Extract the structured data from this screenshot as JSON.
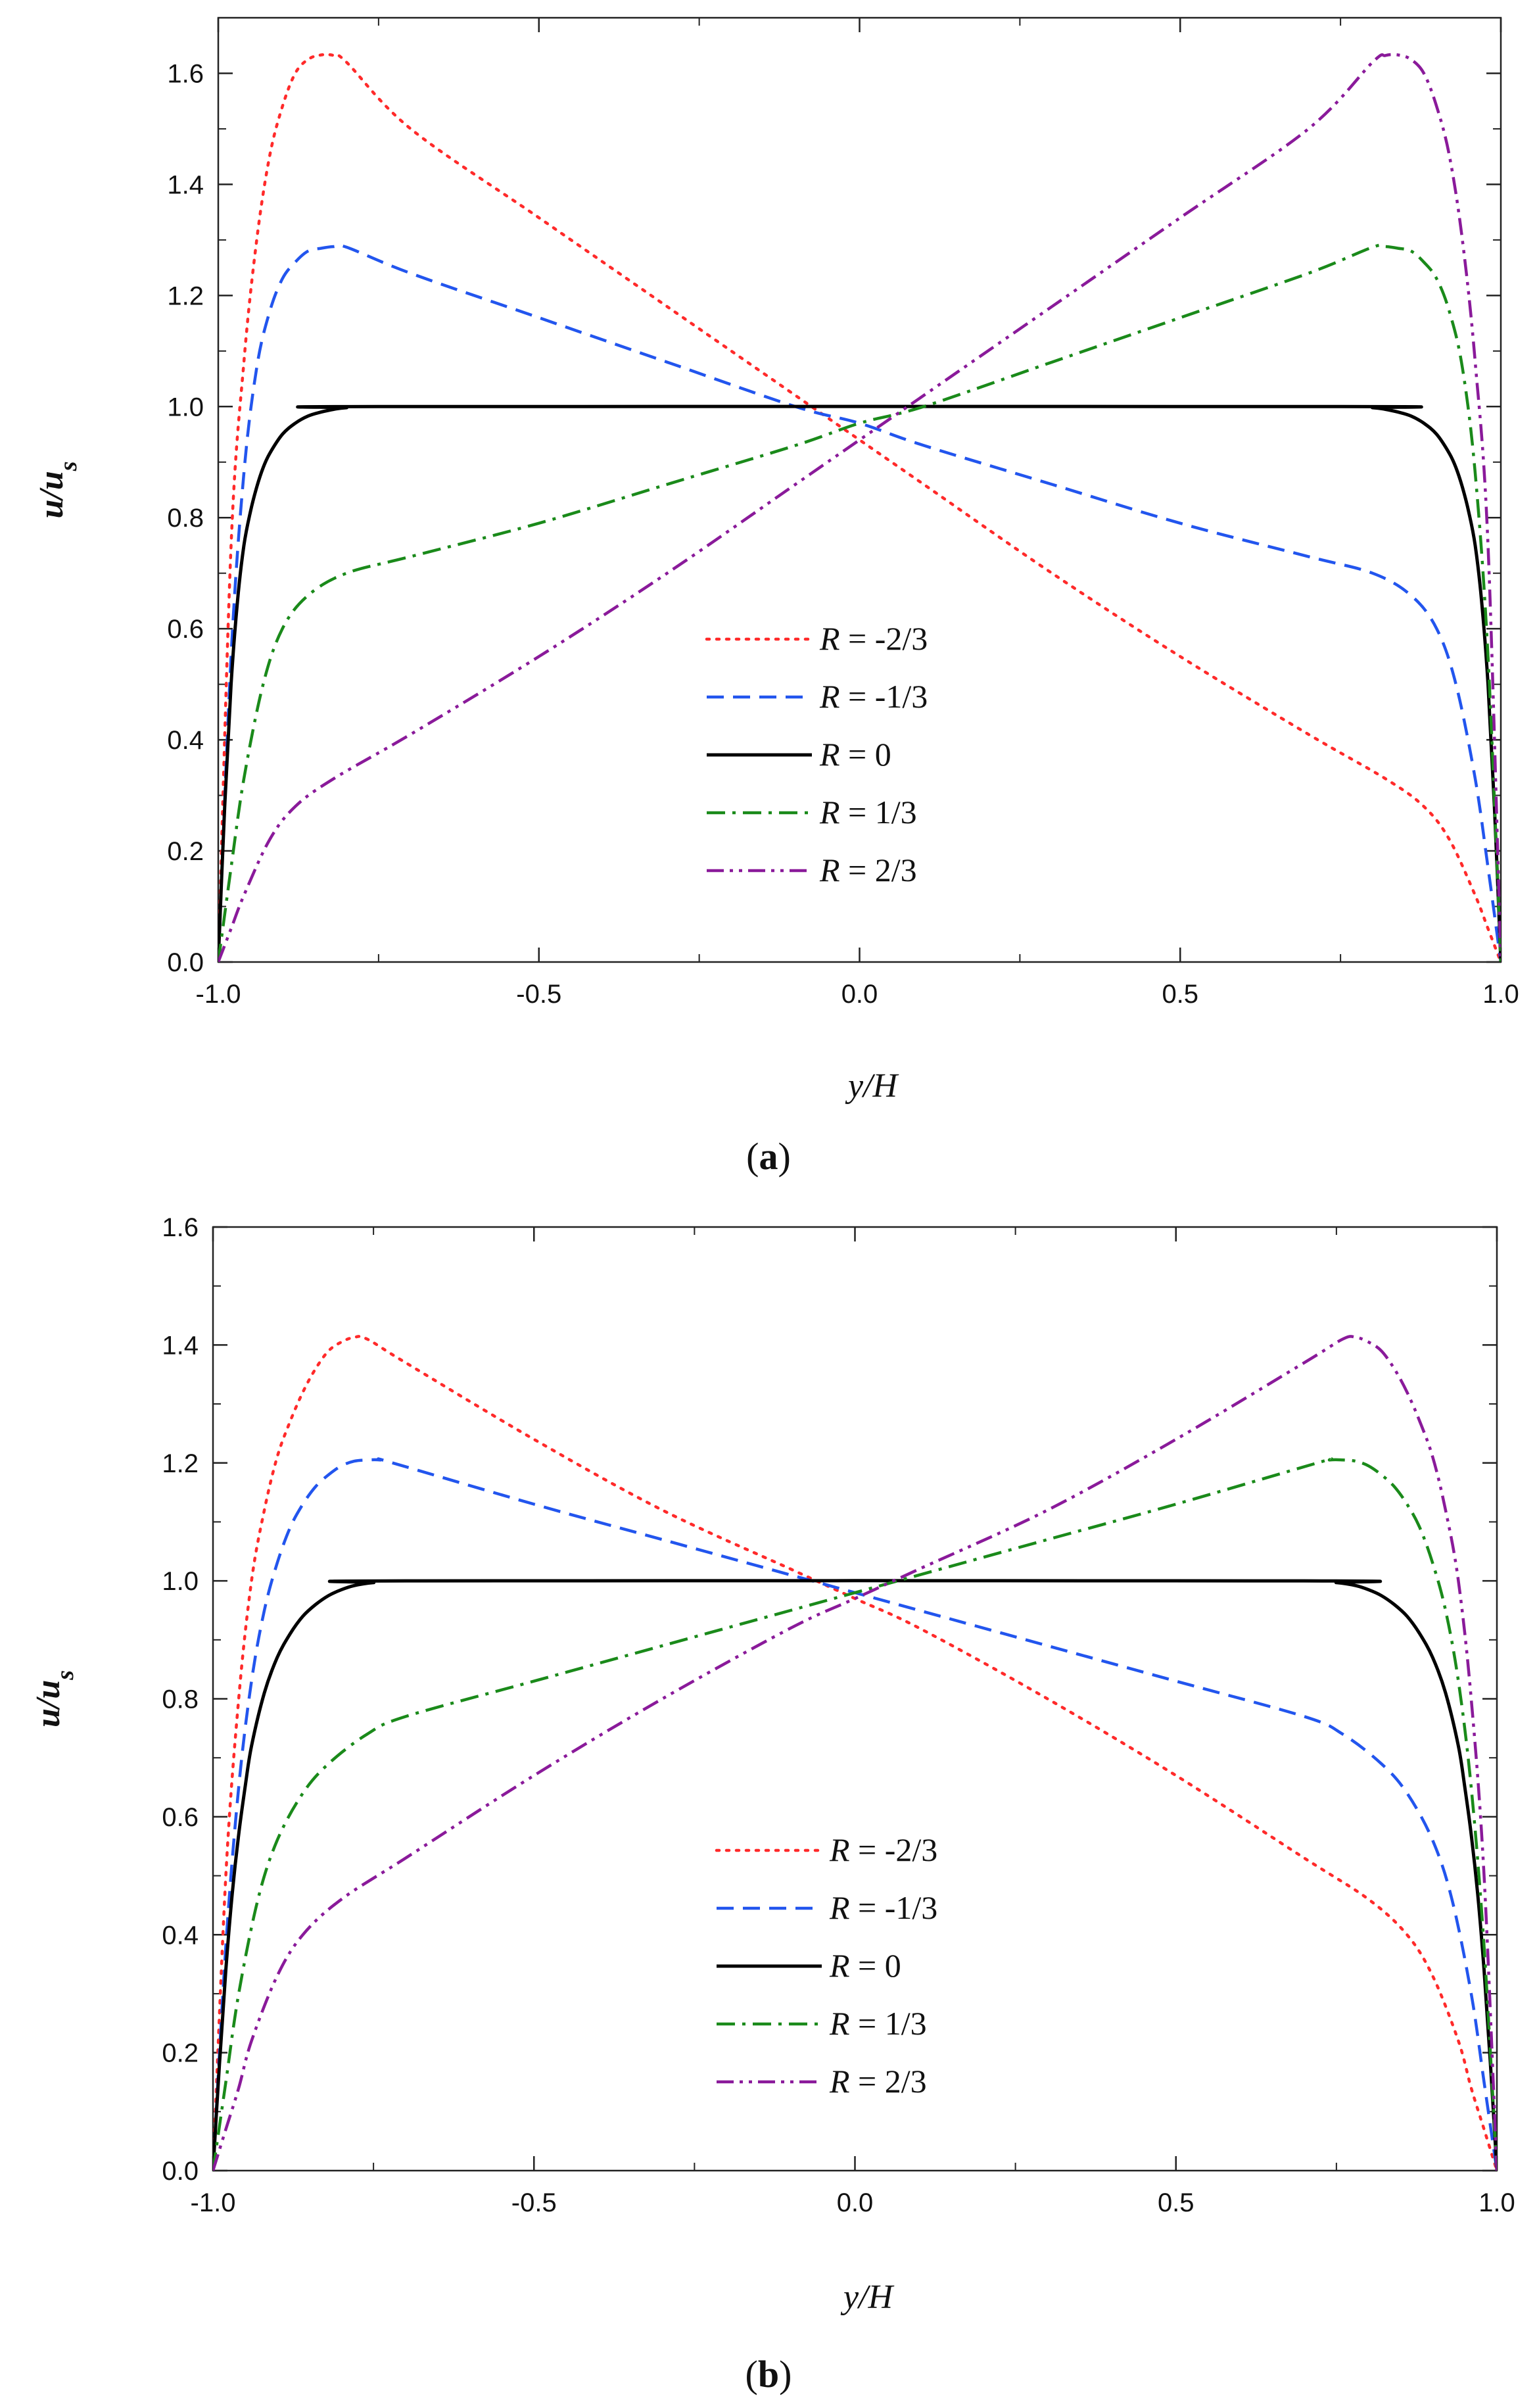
{
  "figure": {
    "panels": [
      {
        "label_open": "(",
        "label_letter": "a",
        "label_close": ")"
      },
      {
        "label_open": "(",
        "label_letter": "b",
        "label_close": ")"
      }
    ]
  },
  "chart_data": [
    {
      "type": "line",
      "panel": "a",
      "xlabel": "y/H",
      "ylabel_main": "u/u",
      "ylabel_sub": "s",
      "xlim": [
        -1.0,
        1.0
      ],
      "ylim": [
        0.0,
        1.7
      ],
      "xticks": [
        "-1.0",
        "-0.5",
        "0.0",
        "0.5",
        "1.0"
      ],
      "xtick_values": [
        -1.0,
        -0.5,
        0.0,
        0.5,
        1.0
      ],
      "yticks": [
        "0.0",
        "0.2",
        "0.4",
        "0.6",
        "0.8",
        "1.0",
        "1.2",
        "1.4",
        "1.6"
      ],
      "ytick_values": [
        0.0,
        0.2,
        0.4,
        0.6,
        0.8,
        1.0,
        1.2,
        1.4,
        1.6
      ],
      "legend_position": "center",
      "series": [
        {
          "name": "R = -2/3",
          "R_label": "R",
          "eq": " = ",
          "value": "-2/3",
          "color": "#ff2a2a",
          "style": "dotted",
          "x": [
            -1.0,
            -0.98,
            -0.96,
            -0.94,
            -0.92,
            -0.9,
            -0.88,
            -0.86,
            -0.84,
            -0.82,
            -0.8,
            -0.7,
            -0.5,
            -0.3,
            -0.1,
            0.0,
            0.1,
            0.3,
            0.5,
            0.7,
            0.82,
            0.88,
            0.92,
            0.96,
            0.98,
            1.0
          ],
          "y": [
            0.0,
            0.75,
            1.08,
            1.3,
            1.45,
            1.54,
            1.6,
            1.625,
            1.633,
            1.632,
            1.62,
            1.5,
            1.34,
            1.18,
            1.02,
            0.94,
            0.86,
            0.7,
            0.55,
            0.41,
            0.33,
            0.28,
            0.22,
            0.12,
            0.06,
            0.0
          ]
        },
        {
          "name": "R = -1/3",
          "R_label": "R",
          "eq": " = ",
          "value": "-1/3",
          "color": "#2255ee",
          "style": "dashed",
          "x": [
            -1.0,
            -0.98,
            -0.96,
            -0.94,
            -0.92,
            -0.9,
            -0.88,
            -0.86,
            -0.84,
            -0.82,
            -0.8,
            -0.7,
            -0.5,
            -0.3,
            -0.1,
            0.0,
            0.1,
            0.3,
            0.5,
            0.7,
            0.8,
            0.86,
            0.9,
            0.93,
            0.96,
            0.98,
            1.0
          ],
          "y": [
            0.0,
            0.55,
            0.88,
            1.07,
            1.17,
            1.23,
            1.26,
            1.28,
            1.285,
            1.288,
            1.287,
            1.24,
            1.16,
            1.08,
            1.0,
            0.97,
            0.93,
            0.86,
            0.79,
            0.73,
            0.7,
            0.66,
            0.6,
            0.5,
            0.33,
            0.17,
            0.0
          ]
        },
        {
          "name": "R = 0",
          "R_label": "R",
          "eq": " = ",
          "value": "0",
          "color": "#000000",
          "style": "solid",
          "x": [
            -1.0,
            -0.99,
            -0.98,
            -0.97,
            -0.96,
            -0.95,
            -0.94,
            -0.93,
            -0.92,
            -0.9,
            -0.88,
            -0.86,
            -0.84,
            -0.82,
            -0.8,
            -0.75,
            0.75,
            0.8,
            0.82,
            0.84,
            0.86,
            0.88,
            0.9,
            0.92,
            0.93,
            0.94,
            0.95,
            0.96,
            0.97,
            0.98,
            0.99,
            1.0
          ],
          "y": [
            0.0,
            0.28,
            0.5,
            0.65,
            0.75,
            0.81,
            0.855,
            0.89,
            0.915,
            0.95,
            0.97,
            0.983,
            0.99,
            0.995,
            0.998,
            1.0,
            1.0,
            0.998,
            0.995,
            0.99,
            0.983,
            0.97,
            0.95,
            0.915,
            0.89,
            0.855,
            0.81,
            0.75,
            0.65,
            0.5,
            0.28,
            0.0
          ]
        },
        {
          "name": "R = 1/3",
          "R_label": "R",
          "eq": " = ",
          "value": "1/3",
          "color": "#1a8a1a",
          "style": "dashdot",
          "x": [
            -1.0,
            -0.98,
            -0.96,
            -0.93,
            -0.9,
            -0.86,
            -0.8,
            -0.7,
            -0.5,
            -0.3,
            -0.1,
            0.0,
            0.1,
            0.3,
            0.5,
            0.7,
            0.8,
            0.82,
            0.84,
            0.86,
            0.88,
            0.9,
            0.92,
            0.94,
            0.96,
            0.98,
            1.0
          ],
          "y": [
            0.0,
            0.17,
            0.33,
            0.5,
            0.6,
            0.66,
            0.7,
            0.73,
            0.79,
            0.86,
            0.93,
            0.97,
            1.0,
            1.08,
            1.16,
            1.24,
            1.287,
            1.288,
            1.285,
            1.28,
            1.26,
            1.23,
            1.17,
            1.07,
            0.88,
            0.55,
            0.0
          ]
        },
        {
          "name": "R = 2/3",
          "R_label": "R",
          "eq": " = ",
          "value": "2/3",
          "color": "#8a1a9a",
          "style": "dashdotdot",
          "x": [
            -1.0,
            -0.98,
            -0.96,
            -0.92,
            -0.88,
            -0.82,
            -0.7,
            -0.5,
            -0.3,
            -0.1,
            0.0,
            0.1,
            0.3,
            0.5,
            0.7,
            0.8,
            0.82,
            0.84,
            0.86,
            0.88,
            0.9,
            0.92,
            0.94,
            0.96,
            0.98,
            1.0
          ],
          "y": [
            0.0,
            0.06,
            0.12,
            0.22,
            0.28,
            0.33,
            0.41,
            0.55,
            0.7,
            0.86,
            0.94,
            1.02,
            1.18,
            1.34,
            1.5,
            1.62,
            1.632,
            1.633,
            1.625,
            1.6,
            1.54,
            1.45,
            1.3,
            1.08,
            0.75,
            0.0
          ]
        }
      ]
    },
    {
      "type": "line",
      "panel": "b",
      "xlabel": "y/H",
      "ylabel_main": "u/u",
      "ylabel_sub": "s",
      "xlim": [
        -1.0,
        1.0
      ],
      "ylim": [
        0.0,
        1.6
      ],
      "xticks": [
        "-1.0",
        "-0.5",
        "0.0",
        "0.5",
        "1.0"
      ],
      "xtick_values": [
        -1.0,
        -0.5,
        0.0,
        0.5,
        1.0
      ],
      "yticks": [
        "0.0",
        "0.2",
        "0.4",
        "0.6",
        "0.8",
        "1.0",
        "1.2",
        "1.4",
        "1.6"
      ],
      "ytick_values": [
        0.0,
        0.2,
        0.4,
        0.6,
        0.8,
        1.0,
        1.2,
        1.4,
        1.6
      ],
      "legend_position": "center",
      "series": [
        {
          "name": "R = -2/3",
          "R_label": "R",
          "eq": " = ",
          "value": "-2/3",
          "color": "#ff2a2a",
          "style": "dotted",
          "x": [
            -1.0,
            -0.98,
            -0.96,
            -0.94,
            -0.92,
            -0.9,
            -0.88,
            -0.86,
            -0.84,
            -0.82,
            -0.8,
            -0.78,
            -0.76,
            -0.7,
            -0.5,
            -0.3,
            -0.1,
            0.0,
            0.1,
            0.3,
            0.5,
            0.7,
            0.8,
            0.86,
            0.9,
            0.94,
            0.96,
            0.98,
            1.0
          ],
          "y": [
            0.0,
            0.5,
            0.8,
            1.0,
            1.12,
            1.21,
            1.27,
            1.32,
            1.36,
            1.39,
            1.405,
            1.413,
            1.41,
            1.37,
            1.24,
            1.12,
            1.02,
            0.97,
            0.92,
            0.8,
            0.67,
            0.53,
            0.46,
            0.4,
            0.33,
            0.22,
            0.14,
            0.07,
            0.0
          ]
        },
        {
          "name": "R = -1/3",
          "R_label": "R",
          "eq": " = ",
          "value": "-1/3",
          "color": "#2255ee",
          "style": "dashed",
          "x": [
            -1.0,
            -0.98,
            -0.96,
            -0.94,
            -0.92,
            -0.9,
            -0.88,
            -0.86,
            -0.84,
            -0.82,
            -0.8,
            -0.78,
            -0.76,
            -0.74,
            -0.72,
            -0.5,
            -0.3,
            -0.1,
            0.0,
            0.1,
            0.3,
            0.5,
            0.7,
            0.76,
            0.82,
            0.86,
            0.9,
            0.93,
            0.96,
            0.98,
            1.0
          ],
          "y": [
            0.0,
            0.38,
            0.65,
            0.83,
            0.95,
            1.03,
            1.09,
            1.13,
            1.16,
            1.18,
            1.195,
            1.203,
            1.205,
            1.205,
            1.2,
            1.13,
            1.07,
            1.01,
            0.98,
            0.95,
            0.89,
            0.83,
            0.77,
            0.74,
            0.69,
            0.64,
            0.56,
            0.46,
            0.3,
            0.15,
            0.0
          ]
        },
        {
          "name": "R = 0",
          "R_label": "R",
          "eq": " = ",
          "value": "0",
          "color": "#000000",
          "style": "solid",
          "x": [
            -1.0,
            -0.99,
            -0.98,
            -0.97,
            -0.96,
            -0.95,
            -0.94,
            -0.92,
            -0.9,
            -0.88,
            -0.86,
            -0.84,
            -0.82,
            -0.8,
            -0.78,
            -0.75,
            -0.7,
            0.7,
            0.75,
            0.78,
            0.8,
            0.82,
            0.84,
            0.86,
            0.88,
            0.9,
            0.92,
            0.94,
            0.95,
            0.96,
            0.97,
            0.98,
            0.99,
            1.0
          ],
          "y": [
            0.0,
            0.18,
            0.34,
            0.47,
            0.57,
            0.65,
            0.72,
            0.81,
            0.87,
            0.91,
            0.94,
            0.96,
            0.975,
            0.985,
            0.992,
            0.997,
            1.0,
            1.0,
            0.997,
            0.992,
            0.985,
            0.975,
            0.96,
            0.94,
            0.91,
            0.87,
            0.81,
            0.72,
            0.65,
            0.57,
            0.47,
            0.34,
            0.18,
            0.0
          ]
        },
        {
          "name": "R = 1/3",
          "R_label": "R",
          "eq": " = ",
          "value": "1/3",
          "color": "#1a8a1a",
          "style": "dashdot",
          "x": [
            -1.0,
            -0.98,
            -0.96,
            -0.93,
            -0.9,
            -0.86,
            -0.82,
            -0.76,
            -0.7,
            -0.5,
            -0.3,
            -0.1,
            0.0,
            0.1,
            0.3,
            0.5,
            0.72,
            0.74,
            0.76,
            0.78,
            0.8,
            0.82,
            0.84,
            0.86,
            0.88,
            0.9,
            0.92,
            0.94,
            0.96,
            0.98,
            1.0
          ],
          "y": [
            0.0,
            0.15,
            0.3,
            0.46,
            0.56,
            0.64,
            0.69,
            0.74,
            0.77,
            0.83,
            0.89,
            0.95,
            0.98,
            1.01,
            1.07,
            1.13,
            1.2,
            1.205,
            1.205,
            1.203,
            1.195,
            1.18,
            1.16,
            1.13,
            1.09,
            1.03,
            0.95,
            0.83,
            0.65,
            0.38,
            0.0
          ]
        },
        {
          "name": "R = 2/3",
          "R_label": "R",
          "eq": " = ",
          "value": "2/3",
          "color": "#8a1a9a",
          "style": "dashdotdot",
          "x": [
            -1.0,
            -0.98,
            -0.96,
            -0.94,
            -0.9,
            -0.86,
            -0.8,
            -0.7,
            -0.5,
            -0.3,
            -0.1,
            0.0,
            0.1,
            0.3,
            0.5,
            0.7,
            0.76,
            0.78,
            0.8,
            0.82,
            0.84,
            0.86,
            0.88,
            0.9,
            0.92,
            0.94,
            0.96,
            0.98,
            1.0
          ],
          "y": [
            0.0,
            0.07,
            0.14,
            0.22,
            0.33,
            0.4,
            0.46,
            0.53,
            0.67,
            0.8,
            0.92,
            0.97,
            1.02,
            1.12,
            1.24,
            1.37,
            1.41,
            1.413,
            1.405,
            1.39,
            1.36,
            1.32,
            1.27,
            1.21,
            1.12,
            1.0,
            0.8,
            0.5,
            0.0
          ]
        }
      ]
    }
  ]
}
